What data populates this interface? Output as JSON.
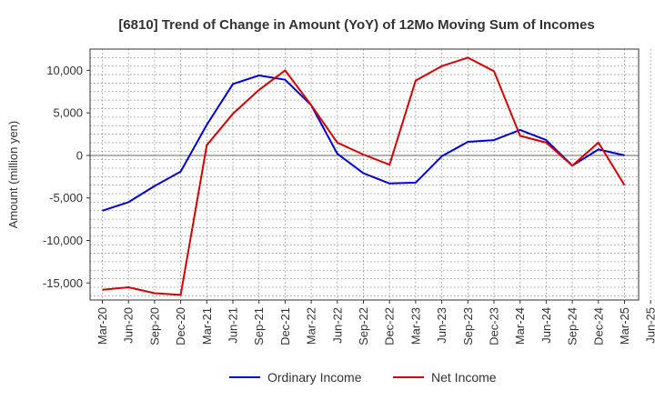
{
  "chart_data": {
    "type": "line",
    "title": "[6810]  Trend of Change in Amount (YoY) of 12Mo Moving Sum of Incomes",
    "ylabel": "Amount (million yen)",
    "xlabel": "",
    "ylim": [
      -17000,
      12500
    ],
    "yticks": [
      10000,
      5000,
      0,
      -5000,
      -10000,
      -15000
    ],
    "ytick_labels": [
      "10,000",
      "5,000",
      "0",
      "-5,000",
      "-10,000",
      "-15,000"
    ],
    "categories": [
      "Mar-20",
      "Jun-20",
      "Sep-20",
      "Dec-20",
      "Mar-21",
      "Jun-21",
      "Sep-21",
      "Dec-21",
      "Mar-22",
      "Jun-22",
      "Sep-22",
      "Dec-22",
      "Mar-23",
      "Jun-23",
      "Sep-23",
      "Dec-23",
      "Mar-24",
      "Jun-24",
      "Sep-24",
      "Dec-24",
      "Mar-25",
      "Jun-25"
    ],
    "grid": true,
    "legend_position": "bottom",
    "series": [
      {
        "name": "Ordinary Income",
        "color": "#0000dd",
        "values": [
          -6500,
          -5500,
          -3600,
          -1900,
          3600,
          8400,
          9400,
          8900,
          5900,
          200,
          -2100,
          -3300,
          -3200,
          -100,
          1600,
          1800,
          3000,
          1800,
          -1200,
          700,
          0,
          null
        ]
      },
      {
        "name": "Net Income",
        "color": "#dd0000",
        "values": [
          -15800,
          -15500,
          -16200,
          -16400,
          1200,
          4900,
          7700,
          10000,
          5900,
          1500,
          100,
          -1100,
          8800,
          10500,
          11500,
          9900,
          2300,
          1500,
          -1200,
          1500,
          -3500,
          null
        ]
      }
    ]
  }
}
